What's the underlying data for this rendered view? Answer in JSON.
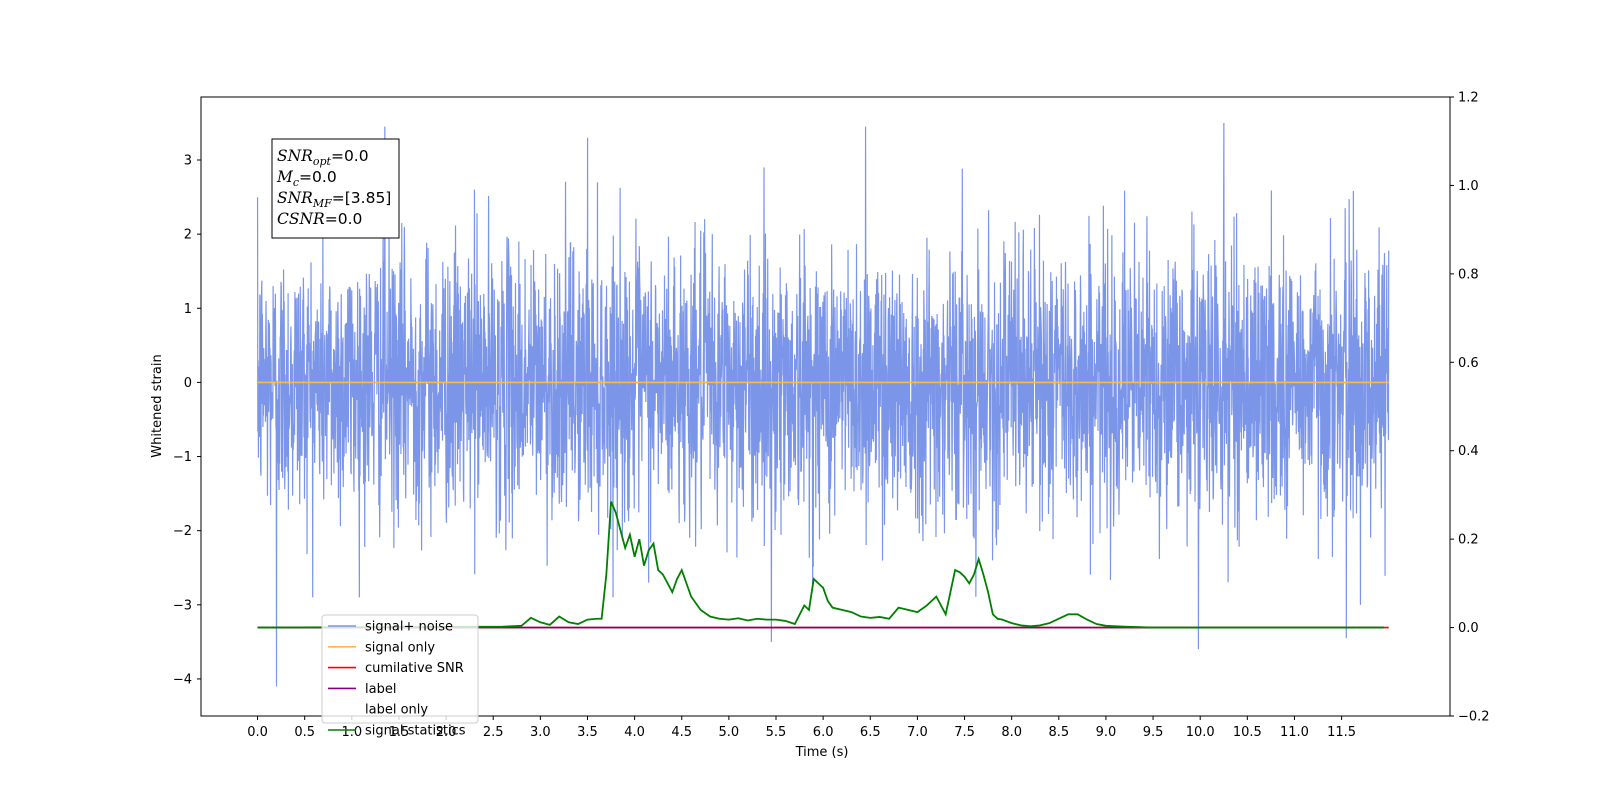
{
  "chart_data": {
    "type": "line",
    "xlabel": "Time (s)",
    "ylabel_left": "Whitened strain",
    "ylabel_right": "",
    "xlim": [
      -0.6,
      12.65
    ],
    "ylim_left": [
      -4.5,
      3.85
    ],
    "ylim_right": [
      -0.2,
      1.2
    ],
    "x_ticks": [
      "0.0",
      "0.5",
      "1.0",
      "1.5",
      "2.0",
      "2.5",
      "3.0",
      "3.5",
      "4.0",
      "4.5",
      "5.0",
      "5.5",
      "6.0",
      "6.5",
      "7.0",
      "7.5",
      "8.0",
      "8.5",
      "9.0",
      "9.5",
      "10.0",
      "10.5",
      "11.0",
      "11.5"
    ],
    "x_tick_values": [
      0.0,
      0.5,
      1.0,
      1.5,
      2.0,
      2.5,
      3.0,
      3.5,
      4.0,
      4.5,
      5.0,
      5.5,
      6.0,
      6.5,
      7.0,
      7.5,
      8.0,
      8.5,
      9.0,
      9.5,
      10.0,
      10.5,
      11.0,
      11.5
    ],
    "y_ticks_left": [
      "3",
      "2",
      "1",
      "0",
      "−1",
      "−2",
      "−3",
      "−4"
    ],
    "y_tick_values_left": [
      3,
      2,
      1,
      0,
      -1,
      -2,
      -3,
      -4
    ],
    "y_ticks_right": [
      "1.2",
      "1.0",
      "0.8",
      "0.6",
      "0.4",
      "0.2",
      "0.0",
      "−0.2"
    ],
    "y_tick_values_right": [
      1.2,
      1.0,
      0.8,
      0.6,
      0.4,
      0.2,
      0.0,
      -0.2
    ],
    "grid": false,
    "legend_position": "lower-left",
    "series": [
      {
        "name": "signal+ noise",
        "color": "#7b96e8",
        "axis": "left",
        "x_range": [
          0.0,
          12.0
        ],
        "noise_std": 0.9,
        "peaks": [
          [
            0.2,
            -4.1
          ],
          [
            1.35,
            3.45
          ],
          [
            2.3,
            2.6
          ],
          [
            3.5,
            3.3
          ],
          [
            5.45,
            -3.5
          ],
          [
            6.45,
            3.45
          ],
          [
            9.98,
            -3.6
          ],
          [
            10.25,
            3.5
          ],
          [
            11.55,
            -3.45
          ],
          [
            11.7,
            -3.0
          ]
        ]
      },
      {
        "name": "signal only",
        "color": "#ffb74d",
        "axis": "left",
        "x_range": [
          0.0,
          12.0
        ],
        "constant": 0.0
      },
      {
        "name": "cumilative SNR",
        "color": "#ff0000",
        "axis": "right",
        "x_range": [
          0.0,
          12.0
        ],
        "constant": 0.0
      },
      {
        "name": "label",
        "color": "#800080",
        "axis": "right",
        "x_range": [
          0.0,
          11.95
        ],
        "constant": 0.0
      },
      {
        "name": "label only",
        "color": "#ffffff",
        "axis": "right",
        "x_range": [
          0.0,
          11.95
        ],
        "constant": 0.0
      },
      {
        "name": "signal statistics",
        "color": "#008000",
        "axis": "right",
        "x": [
          0.0,
          2.6,
          2.8,
          2.9,
          3.0,
          3.1,
          3.2,
          3.3,
          3.4,
          3.5,
          3.6,
          3.65,
          3.7,
          3.75,
          3.8,
          3.85,
          3.9,
          3.95,
          4.0,
          4.05,
          4.1,
          4.15,
          4.2,
          4.25,
          4.3,
          4.35,
          4.4,
          4.45,
          4.5,
          4.6,
          4.7,
          4.8,
          4.9,
          5.0,
          5.1,
          5.2,
          5.3,
          5.4,
          5.5,
          5.6,
          5.7,
          5.8,
          5.85,
          5.9,
          5.95,
          6.0,
          6.05,
          6.1,
          6.2,
          6.3,
          6.4,
          6.5,
          6.6,
          6.7,
          6.8,
          6.9,
          7.0,
          7.1,
          7.2,
          7.3,
          7.4,
          7.45,
          7.5,
          7.55,
          7.6,
          7.65,
          7.7,
          7.75,
          7.8,
          7.85,
          7.9,
          8.0,
          8.1,
          8.2,
          8.3,
          8.4,
          8.5,
          8.6,
          8.7,
          8.8,
          8.9,
          9.0,
          9.2,
          9.5,
          11.95
        ],
        "y": [
          0.0,
          0.002,
          0.004,
          0.022,
          0.012,
          0.006,
          0.025,
          0.012,
          0.008,
          0.018,
          0.02,
          0.02,
          0.12,
          0.285,
          0.26,
          0.22,
          0.18,
          0.21,
          0.16,
          0.2,
          0.14,
          0.175,
          0.19,
          0.13,
          0.12,
          0.1,
          0.08,
          0.11,
          0.13,
          0.07,
          0.04,
          0.025,
          0.02,
          0.018,
          0.021,
          0.016,
          0.02,
          0.018,
          0.018,
          0.015,
          0.008,
          0.05,
          0.04,
          0.11,
          0.1,
          0.09,
          0.06,
          0.045,
          0.04,
          0.035,
          0.025,
          0.022,
          0.024,
          0.02,
          0.045,
          0.04,
          0.035,
          0.05,
          0.07,
          0.03,
          0.13,
          0.125,
          0.115,
          0.1,
          0.12,
          0.155,
          0.12,
          0.08,
          0.03,
          0.02,
          0.018,
          0.01,
          0.005,
          0.003,
          0.005,
          0.01,
          0.02,
          0.03,
          0.03,
          0.018,
          0.008,
          0.004,
          0.002,
          0.0,
          0.0
        ]
      }
    ],
    "annotation": {
      "lines": [
        {
          "sym": "SNR",
          "sub": "opt",
          "rest": "=0.0"
        },
        {
          "sym": "M",
          "sub": "c",
          "rest": "=0.0"
        },
        {
          "sym": "SNR",
          "sub": "MF",
          "rest": "=[3.85]"
        },
        {
          "sym": "CSNR",
          "sub": "",
          "rest": "=0.0"
        }
      ]
    }
  }
}
